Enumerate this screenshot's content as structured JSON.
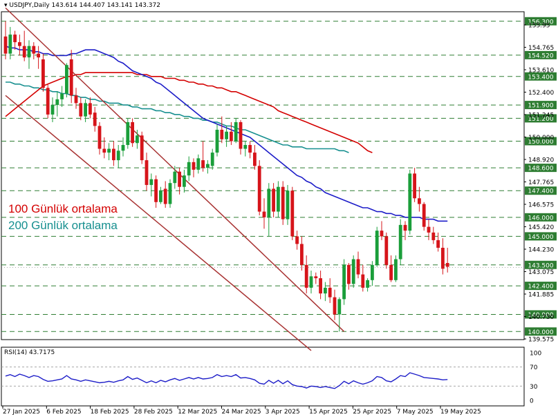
{
  "header": {
    "symbol": "USDJPY,Daily",
    "ohlc": "143.614 144.407 143.141 143.372"
  },
  "legend": {
    "ma100": "100 Günlük ortalama",
    "ma200": "200 Günlük ortalama"
  },
  "colors": {
    "bull": "#1a9e3a",
    "bear": "#d6141a",
    "ma50": "#1c1cc8",
    "ma100": "#d40000",
    "ma200": "#168f8f",
    "channel": "#a83232",
    "levels": "#2e7d32",
    "rsi": "#1c1cc8"
  },
  "rsi_panel": {
    "label": "RSI(14) 43.7175",
    "ticks": [
      "100",
      "70",
      "30",
      "0"
    ]
  },
  "chart_data": {
    "type": "candlestick",
    "y_ticks": [
      "155.95",
      "154.765",
      "153.610",
      "152.400",
      "151.245",
      "150.000",
      "148.920",
      "147.765",
      "146.575",
      "145.420",
      "144.230",
      "143.075",
      "141.885",
      "140.730",
      "139.575"
    ],
    "level_labels": [
      "156.300",
      "154.520",
      "153.400",
      "151.900",
      "151.200",
      "150.000",
      "148.600",
      "147.400",
      "146.000",
      "145.000",
      "143.500",
      "142.400",
      "140.900",
      "140.000"
    ],
    "levels": [
      156.3,
      154.52,
      153.4,
      151.9,
      151.2,
      150.0,
      148.6,
      147.4,
      146.0,
      145.0,
      143.5,
      142.4,
      140.9,
      140.0
    ],
    "current_price_label": "143.372",
    "current_price": 143.372,
    "x_labels": [
      "27 Jan 2025",
      "6 Feb 2025",
      "18 Feb 2025",
      "28 Feb 2025",
      "12 Mar 2025",
      "24 Mar 2025",
      "3 Apr 2025",
      "15 Apr 2025",
      "25 Apr 2025",
      "7 May 2025",
      "19 May 2025"
    ],
    "y_range": [
      139.575,
      156.8
    ],
    "candles": [
      [
        155.5,
        156.3,
        154.3,
        154.6
      ],
      [
        154.6,
        156.0,
        154.3,
        155.6
      ],
      [
        155.6,
        155.8,
        154.8,
        155.2
      ],
      [
        155.2,
        155.6,
        154.5,
        155.0
      ],
      [
        155.0,
        155.8,
        154.2,
        154.4
      ],
      [
        154.4,
        155.3,
        153.8,
        155.0
      ],
      [
        155.0,
        155.2,
        154.3,
        154.6
      ],
      [
        154.6,
        155.0,
        153.8,
        154.4
      ],
      [
        154.3,
        154.6,
        152.6,
        152.8
      ],
      [
        152.8,
        153.0,
        151.2,
        151.4
      ],
      [
        151.4,
        152.3,
        151.0,
        151.9
      ],
      [
        151.9,
        152.6,
        151.3,
        152.2
      ],
      [
        152.2,
        152.9,
        151.8,
        152.5
      ],
      [
        152.5,
        154.1,
        152.3,
        154.0
      ],
      [
        154.3,
        154.8,
        152.0,
        152.4
      ],
      [
        152.4,
        152.8,
        151.7,
        152.0
      ],
      [
        152.0,
        152.3,
        151.1,
        151.3
      ],
      [
        151.3,
        152.2,
        151.0,
        152.0
      ],
      [
        152.0,
        152.3,
        151.2,
        151.4
      ],
      [
        151.5,
        151.8,
        150.5,
        150.8
      ],
      [
        150.8,
        151.0,
        149.3,
        149.6
      ],
      [
        149.6,
        150.2,
        149.1,
        149.4
      ],
      [
        149.4,
        149.9,
        149.0,
        149.6
      ],
      [
        149.6,
        150.0,
        148.7,
        149.0
      ],
      [
        149.0,
        149.8,
        148.6,
        149.5
      ],
      [
        149.5,
        150.2,
        149.2,
        149.8
      ],
      [
        149.8,
        151.2,
        149.6,
        151.0
      ],
      [
        151.0,
        151.2,
        149.7,
        149.9
      ],
      [
        149.9,
        150.6,
        149.6,
        150.3
      ],
      [
        150.3,
        150.5,
        148.8,
        149.0
      ],
      [
        149.0,
        149.4,
        147.4,
        147.7
      ],
      [
        147.7,
        148.3,
        147.1,
        148.0
      ],
      [
        148.0,
        148.2,
        146.5,
        146.8
      ],
      [
        146.8,
        147.6,
        146.7,
        147.4
      ],
      [
        147.5,
        147.9,
        146.5,
        146.7
      ],
      [
        146.7,
        148.0,
        146.5,
        147.8
      ],
      [
        147.8,
        148.7,
        147.5,
        148.4
      ],
      [
        148.4,
        148.6,
        147.2,
        147.6
      ],
      [
        147.6,
        148.5,
        147.3,
        148.2
      ],
      [
        148.2,
        149.2,
        147.9,
        148.9
      ],
      [
        148.9,
        149.1,
        148.1,
        148.5
      ],
      [
        148.5,
        149.3,
        148.3,
        149.1
      ],
      [
        149.0,
        150.0,
        148.4,
        148.6
      ],
      [
        148.6,
        149.0,
        148.3,
        148.8
      ],
      [
        148.7,
        149.6,
        148.5,
        149.4
      ],
      [
        149.4,
        150.9,
        149.2,
        150.6
      ],
      [
        150.6,
        151.3,
        149.9,
        150.1
      ],
      [
        150.1,
        150.8,
        149.7,
        150.5
      ],
      [
        150.5,
        151.0,
        149.8,
        150.0
      ],
      [
        150.0,
        151.2,
        149.9,
        151.0
      ],
      [
        151.0,
        151.1,
        149.3,
        149.6
      ],
      [
        149.6,
        150.0,
        149.2,
        149.8
      ],
      [
        149.8,
        150.0,
        149.1,
        149.4
      ],
      [
        149.4,
        149.8,
        148.5,
        148.7
      ],
      [
        148.7,
        149.0,
        146.1,
        146.3
      ],
      [
        146.3,
        147.0,
        145.4,
        146.0
      ],
      [
        146.0,
        147.8,
        145.0,
        147.5
      ],
      [
        147.5,
        147.8,
        146.0,
        146.3
      ],
      [
        146.3,
        147.9,
        146.0,
        147.6
      ],
      [
        147.6,
        147.9,
        145.6,
        145.9
      ],
      [
        145.9,
        147.7,
        145.6,
        147.4
      ],
      [
        147.4,
        147.6,
        144.8,
        145.0
      ],
      [
        145.0,
        145.3,
        144.3,
        144.6
      ],
      [
        144.6,
        145.0,
        143.2,
        143.5
      ],
      [
        143.5,
        144.0,
        142.0,
        142.3
      ],
      [
        142.3,
        143.2,
        142.0,
        142.9
      ],
      [
        142.9,
        143.1,
        142.5,
        142.8
      ],
      [
        142.8,
        143.2,
        141.7,
        142.0
      ],
      [
        142.0,
        142.6,
        141.6,
        142.3
      ],
      [
        142.3,
        142.8,
        141.5,
        141.8
      ],
      [
        141.8,
        142.2,
        140.6,
        140.9
      ],
      [
        140.9,
        141.8,
        140.0,
        141.7
      ],
      [
        141.7,
        143.8,
        141.4,
        143.5
      ],
      [
        143.5,
        143.6,
        142.2,
        142.5
      ],
      [
        142.5,
        144.0,
        142.3,
        143.8
      ],
      [
        143.8,
        144.2,
        142.8,
        143.0
      ],
      [
        143.0,
        143.5,
        142.1,
        142.3
      ],
      [
        142.3,
        142.8,
        142.1,
        142.7
      ],
      [
        142.7,
        143.7,
        142.4,
        143.5
      ],
      [
        143.5,
        145.5,
        143.4,
        145.3
      ],
      [
        145.3,
        145.8,
        144.8,
        145.0
      ],
      [
        145.0,
        145.2,
        143.3,
        143.5
      ],
      [
        143.5,
        144.0,
        142.6,
        142.7
      ],
      [
        142.7,
        144.0,
        142.6,
        143.8
      ],
      [
        143.8,
        145.9,
        143.5,
        145.6
      ],
      [
        145.6,
        145.8,
        144.8,
        145.3
      ],
      [
        145.3,
        148.5,
        145.1,
        148.3
      ],
      [
        148.3,
        148.6,
        146.8,
        147.0
      ],
      [
        147.0,
        147.6,
        146.3,
        146.7
      ],
      [
        146.7,
        146.8,
        145.3,
        145.5
      ],
      [
        145.5,
        145.9,
        144.8,
        145.2
      ],
      [
        145.2,
        145.5,
        144.6,
        144.8
      ],
      [
        144.8,
        145.2,
        144.2,
        144.4
      ],
      [
        144.4,
        144.9,
        143.0,
        143.3
      ],
      [
        143.6,
        144.4,
        143.1,
        143.4
      ]
    ],
    "ma50": [
      155.0,
      154.9,
      154.9,
      154.8,
      154.8,
      154.8,
      154.7,
      154.7,
      154.6,
      154.6,
      154.5,
      154.5,
      154.5,
      154.5,
      154.6,
      154.6,
      154.7,
      154.8,
      154.8,
      154.8,
      154.7,
      154.6,
      154.5,
      154.4,
      154.2,
      154.1,
      153.9,
      153.7,
      153.6,
      153.5,
      153.4,
      153.3,
      153.1,
      153.0,
      152.8,
      152.6,
      152.4,
      152.2,
      152.0,
      151.8,
      151.6,
      151.4,
      151.2,
      151.1,
      151.0,
      150.9,
      150.8,
      150.7,
      150.6,
      150.5,
      150.4,
      150.3,
      150.2,
      150.0,
      149.8,
      149.6,
      149.4,
      149.2,
      149.0,
      148.8,
      148.6,
      148.4,
      148.2,
      148.1,
      147.9,
      147.8,
      147.6,
      147.5,
      147.3,
      147.2,
      147.1,
      147.0,
      146.9,
      146.8,
      146.7,
      146.6,
      146.5,
      146.5,
      146.4,
      146.3,
      146.3,
      146.2,
      146.2,
      146.1,
      146.1,
      146.0,
      146.0,
      146.0,
      146.0,
      145.9,
      145.9,
      145.9,
      145.8,
      145.8,
      145.8
    ],
    "ma100": [
      151.3,
      151.5,
      151.7,
      151.9,
      152.1,
      152.3,
      152.5,
      152.7,
      152.9,
      153.0,
      153.1,
      153.2,
      153.3,
      153.4,
      153.4,
      153.5,
      153.5,
      153.6,
      153.6,
      153.6,
      153.6,
      153.6,
      153.6,
      153.6,
      153.6,
      153.6,
      153.6,
      153.6,
      153.5,
      153.5,
      153.5,
      153.4,
      153.4,
      153.4,
      153.3,
      153.3,
      153.3,
      153.2,
      153.2,
      153.1,
      153.1,
      153.0,
      153.0,
      152.9,
      152.9,
      152.8,
      152.8,
      152.7,
      152.6,
      152.6,
      152.5,
      152.4,
      152.3,
      152.2,
      152.1,
      152.0,
      151.9,
      151.8,
      151.6,
      151.5,
      151.4,
      151.3,
      151.2,
      151.1,
      151.0,
      150.9,
      150.8,
      150.7,
      150.6,
      150.5,
      150.4,
      150.3,
      150.2,
      150.1,
      150.0,
      149.9,
      149.7,
      149.5,
      149.4
    ],
    "ma200": [
      153.1,
      153.1,
      153.0,
      153.0,
      152.9,
      152.9,
      152.8,
      152.8,
      152.7,
      152.7,
      152.6,
      152.6,
      152.5,
      152.5,
      152.4,
      152.4,
      152.3,
      152.3,
      152.2,
      152.2,
      152.1,
      152.1,
      152.0,
      152.0,
      152.0,
      151.9,
      151.9,
      151.8,
      151.8,
      151.7,
      151.7,
      151.7,
      151.6,
      151.6,
      151.5,
      151.5,
      151.4,
      151.4,
      151.3,
      151.3,
      151.2,
      151.2,
      151.1,
      151.1,
      151.0,
      151.0,
      150.9,
      150.8,
      150.8,
      150.7,
      150.6,
      150.6,
      150.5,
      150.4,
      150.3,
      150.2,
      150.1,
      150.0,
      149.9,
      149.8,
      149.8,
      149.7,
      149.7,
      149.7,
      149.6,
      149.6,
      149.6,
      149.6,
      149.6,
      149.6,
      149.6,
      149.5,
      149.5,
      149.4
    ],
    "channel_upper": [
      [
        0,
        157.0
      ],
      [
        72,
        140.0
      ]
    ],
    "channel_lower": [
      [
        0,
        152.4
      ],
      [
        65,
        139.0
      ]
    ],
    "rsi_range": [
      0,
      100
    ],
    "rsi": [
      51,
      54,
      50,
      55,
      52,
      48,
      52,
      50,
      44,
      40,
      41,
      43,
      45,
      52,
      45,
      43,
      40,
      43,
      41,
      39,
      37,
      38,
      40,
      38,
      41,
      43,
      50,
      44,
      47,
      42,
      37,
      41,
      37,
      42,
      39,
      43,
      46,
      42,
      45,
      48,
      45,
      48,
      45,
      46,
      48,
      54,
      50,
      52,
      50,
      54,
      47,
      48,
      46,
      43,
      36,
      34,
      42,
      36,
      42,
      35,
      41,
      33,
      30,
      29,
      26,
      30,
      29,
      27,
      29,
      27,
      25,
      31,
      40,
      35,
      41,
      37,
      34,
      37,
      41,
      50,
      48,
      41,
      39,
      45,
      52,
      50,
      58,
      55,
      52,
      48,
      47,
      46,
      45,
      43,
      43.7
    ]
  }
}
